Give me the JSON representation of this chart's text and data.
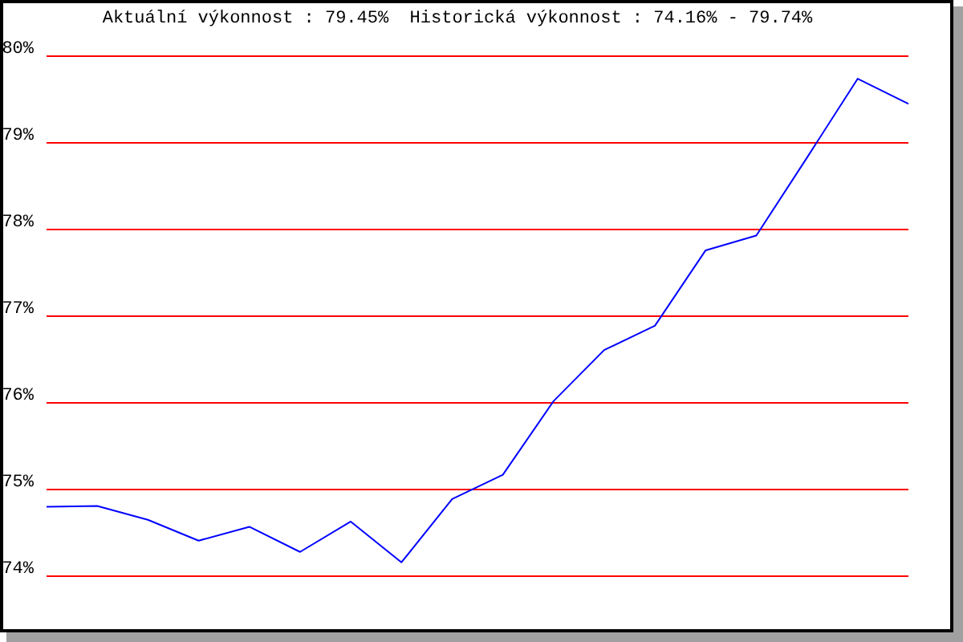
{
  "chart_data": {
    "type": "line",
    "title": "Aktuální výkonnost : 79.45%  Historická výkonnost : 74.16% - 79.74%",
    "categories": [
      null,
      null,
      null,
      null,
      null,
      null,
      null,
      null,
      null,
      null,
      null,
      null,
      null,
      null,
      null,
      null,
      null,
      null
    ],
    "series": [
      {
        "color": "#0000ff",
        "values": [
          74.8,
          74.81,
          74.65,
          74.41,
          74.57,
          74.28,
          74.63,
          74.16,
          74.89,
          75.17,
          76.02,
          76.61,
          76.89,
          77.76,
          77.93,
          78.83,
          79.74,
          79.45
        ]
      }
    ],
    "ylim": [
      74,
      80
    ],
    "yticks": [
      {
        "value": 74,
        "label": "74%"
      },
      {
        "value": 75,
        "label": "75%"
      },
      {
        "value": 76,
        "label": "76%"
      },
      {
        "value": 77,
        "label": "77%"
      },
      {
        "value": 78,
        "label": "78%"
      },
      {
        "value": 79,
        "label": "79%"
      },
      {
        "value": 80,
        "label": "80%"
      }
    ],
    "grid": "y",
    "tick_labels": "y",
    "marker": "none",
    "line_style": "solid"
  }
}
